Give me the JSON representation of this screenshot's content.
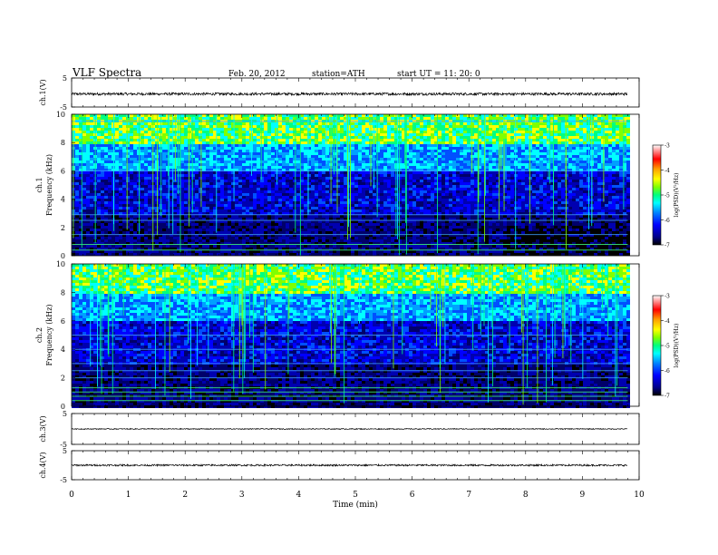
{
  "header": {
    "title": "VLF Spectra",
    "date": "Feb. 20, 2012",
    "station": "station=ATH",
    "start": "start UT = 11: 20: 0"
  },
  "chart_data": [
    {
      "type": "line",
      "panel": "ch1-waveform",
      "ylabel": "ch.1(V)",
      "ylim": [
        -5,
        5
      ],
      "yticks": [
        "5",
        "-5"
      ],
      "baseline_v": -0.5,
      "color": "#000000"
    },
    {
      "type": "heatmap",
      "panel": "ch1-spectrogram",
      "ylabel": [
        "ch.1",
        "Frequency (kHz)"
      ],
      "ylim": [
        0,
        10
      ],
      "yticks": [
        "0",
        "2",
        "4",
        "6",
        "8",
        "10"
      ],
      "xlim": [
        0,
        9.8
      ],
      "colorbar": {
        "label": "log(PSD)(V²/Hz)",
        "ticks": [
          "-3",
          "-4",
          "-5",
          "-6",
          "-7"
        ],
        "range": [
          -7,
          -3
        ],
        "colors": [
          "#000000",
          "#00008b",
          "#0000ff",
          "#0080ff",
          "#00ffff",
          "#00ff80",
          "#80ff00",
          "#ffff00",
          "#ffa000",
          "#ff0000",
          "#ffa0a0",
          "#ffffff"
        ]
      }
    },
    {
      "type": "heatmap",
      "panel": "ch2-spectrogram",
      "ylabel": [
        "ch.2",
        "Frequency (kHz)"
      ],
      "ylim": [
        0,
        10
      ],
      "yticks": [
        "0",
        "2",
        "4",
        "6",
        "8",
        "10"
      ],
      "xlim": [
        0,
        9.8
      ],
      "colorbar": {
        "label": "log(PSD)(V²/Hz)",
        "ticks": [
          "-3",
          "-4",
          "-5",
          "-6",
          "-7"
        ],
        "range": [
          -7,
          -3
        ]
      }
    },
    {
      "type": "line",
      "panel": "ch3-waveform",
      "ylabel": "ch.3(V)",
      "ylim": [
        -5,
        5
      ],
      "yticks": [
        "5",
        "-5"
      ],
      "baseline_v": 0,
      "color": "#000000"
    },
    {
      "type": "line",
      "panel": "ch4-waveform",
      "ylabel": "ch.4(V)",
      "ylim": [
        -5,
        5
      ],
      "yticks": [
        "5",
        "-5"
      ],
      "baseline_v": 0,
      "color": "#000000"
    }
  ],
  "xaxis": {
    "label": "Time (min)",
    "ticks": [
      "0",
      "1",
      "2",
      "3",
      "4",
      "5",
      "6",
      "7",
      "8",
      "9",
      "10"
    ],
    "range": [
      0,
      10
    ]
  }
}
